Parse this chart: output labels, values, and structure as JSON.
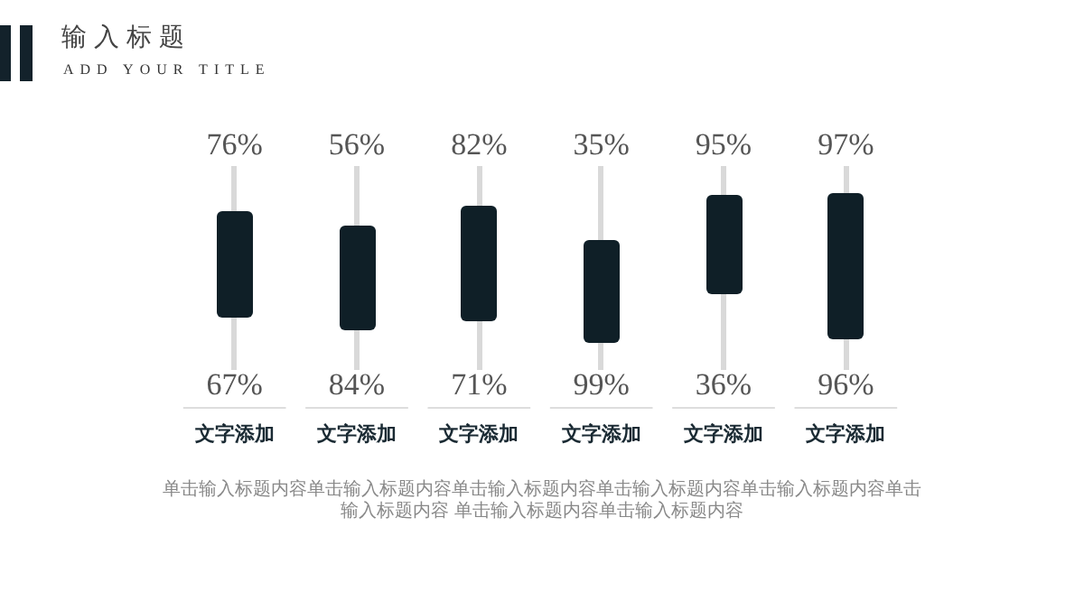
{
  "chart_data": {
    "type": "other",
    "title": "输入标题",
    "subtitle": "ADD YOUR TITLE",
    "categories": [
      "文字添加",
      "文字添加",
      "文字添加",
      "文字添加",
      "文字添加",
      "文字添加"
    ],
    "series": [
      {
        "values": [
          76,
          56,
          82,
          35,
          95,
          97
        ],
        "value_labels": [
          "76%",
          "56%",
          "82%",
          "35%",
          "95%",
          "97%"
        ]
      },
      {
        "values": [
          67,
          84,
          71,
          99,
          36,
          96
        ],
        "value_labels": [
          "67%",
          "84%",
          "71%",
          "99%",
          "36%",
          "96%"
        ]
      }
    ],
    "annotations": [
      "单击输入标题内容单击输入标题内容单击输入标题内容单击输入标题内容单击输入标题内容单击输入标题内容 单击输入标题内容单击输入标题内容"
    ]
  }
}
